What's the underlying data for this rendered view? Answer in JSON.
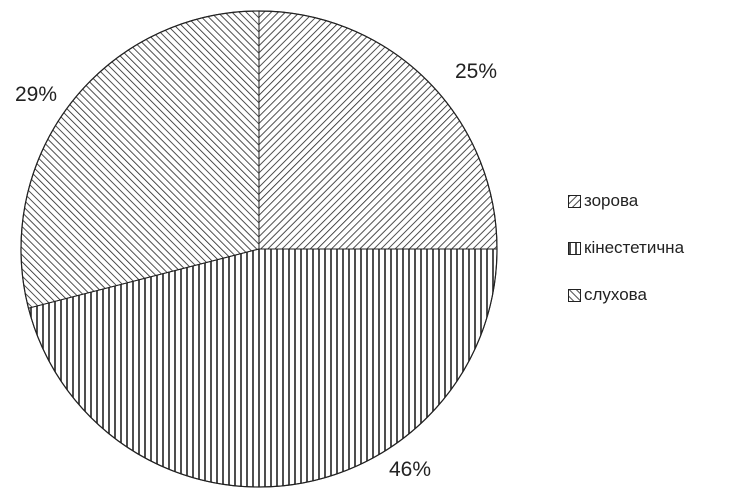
{
  "chart_data": {
    "type": "pie",
    "slices": [
      {
        "label": "зорова",
        "value": 25,
        "value_label": "25%",
        "pattern": "diag-right"
      },
      {
        "label": "кінестетична",
        "value": 46,
        "value_label": "46%",
        "pattern": "vertical"
      },
      {
        "label": "слухова",
        "value": 29,
        "value_label": "29%",
        "pattern": "diag-left"
      }
    ],
    "start": "12 o'clock, clockwise",
    "legend_position": "right",
    "colors": {
      "stroke": "#222222",
      "hatch": "#222222",
      "background": "#ffffff"
    }
  }
}
